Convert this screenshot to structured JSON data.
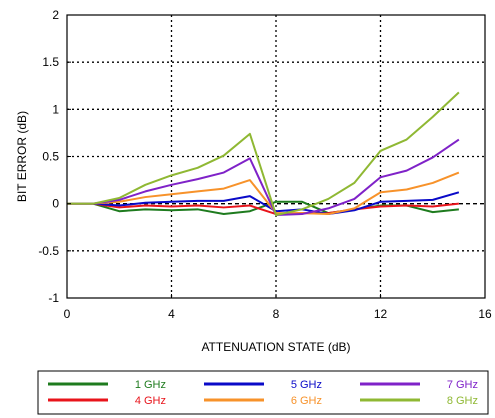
{
  "chart_data": {
    "type": "line",
    "title": "",
    "xlabel": "ATTENUATION STATE (dB)",
    "ylabel": "BIT ERROR (dB)",
    "xlim": [
      0,
      16
    ],
    "ylim": [
      -1,
      2
    ],
    "xticks": [
      0,
      4,
      8,
      12,
      16
    ],
    "yticks": [
      -1,
      -0.5,
      0,
      0.5,
      1,
      1.5,
      2
    ],
    "ytick_labels": [
      "-1",
      "-0.5",
      "0",
      "0.5",
      "1",
      "1.5",
      "2"
    ],
    "grid": true,
    "grid_style": "dotted",
    "reference_line": {
      "y": 0,
      "style": "dashed",
      "color": "#000000"
    },
    "legend_position": "bottom",
    "x": [
      0,
      1,
      2,
      3,
      4,
      5,
      6,
      7,
      8,
      9,
      10,
      11,
      12,
      13,
      14,
      15
    ],
    "series": [
      {
        "name": "1 GHz",
        "color": "#1e7b1e",
        "values": [
          0,
          0,
          -0.08,
          -0.06,
          -0.07,
          -0.06,
          -0.11,
          -0.08,
          0.02,
          0.02,
          -0.1,
          -0.06,
          -0.02,
          -0.02,
          -0.09,
          -0.06
        ]
      },
      {
        "name": "4 GHz",
        "color": "#e8141b",
        "values": [
          0,
          0,
          -0.04,
          -0.02,
          -0.03,
          -0.02,
          -0.04,
          -0.02,
          -0.11,
          -0.1,
          -0.1,
          -0.06,
          -0.03,
          -0.02,
          -0.03,
          0.0
        ]
      },
      {
        "name": "5 GHz",
        "color": "#0a0ac8",
        "values": [
          0,
          0,
          -0.02,
          0.01,
          0.02,
          0.03,
          0.03,
          0.08,
          -0.08,
          -0.06,
          -0.11,
          -0.07,
          0.02,
          0.03,
          0.04,
          0.12
        ]
      },
      {
        "name": "6 GHz",
        "color": "#f7922a",
        "values": [
          0,
          0,
          0.02,
          0.07,
          0.1,
          0.13,
          0.16,
          0.25,
          -0.1,
          -0.1,
          -0.11,
          -0.05,
          0.12,
          0.15,
          0.22,
          0.33
        ]
      },
      {
        "name": "7 GHz",
        "color": "#7f22c8",
        "values": [
          0,
          0,
          0.04,
          0.13,
          0.2,
          0.26,
          0.33,
          0.48,
          -0.12,
          -0.11,
          -0.05,
          0.05,
          0.28,
          0.35,
          0.49,
          0.68
        ]
      },
      {
        "name": "8 GHz",
        "color": "#8fb833",
        "values": [
          0,
          0,
          0.06,
          0.2,
          0.3,
          0.38,
          0.51,
          0.74,
          -0.12,
          -0.06,
          0.05,
          0.22,
          0.56,
          0.68,
          0.92,
          1.18
        ]
      }
    ]
  }
}
